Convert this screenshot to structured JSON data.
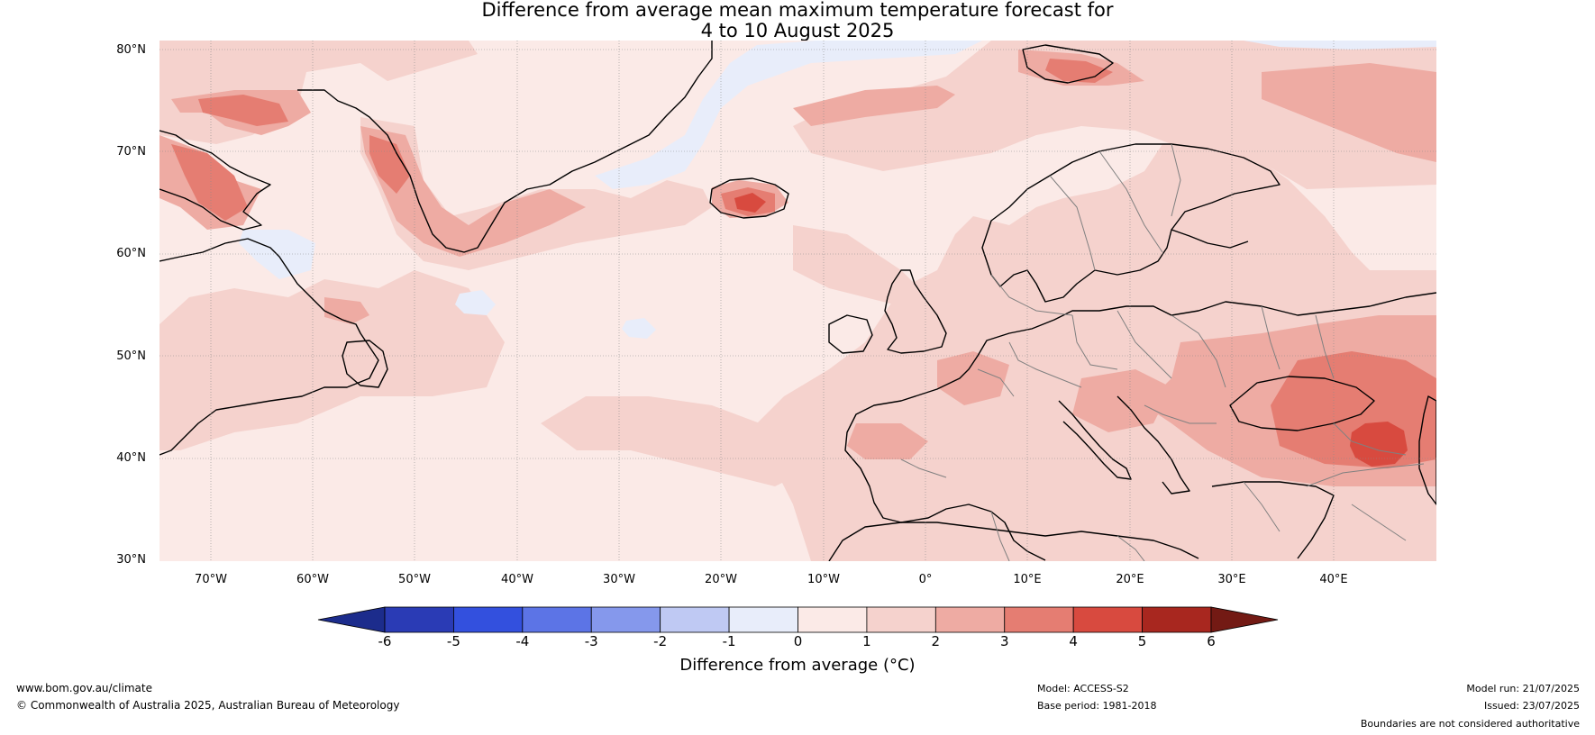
{
  "title": {
    "line1": "Difference from average mean maximum temperature forecast for",
    "line2": "4 to 10 August 2025"
  },
  "map": {
    "region": "North Atlantic and Europe",
    "lon_range": [
      -75,
      50
    ],
    "lat_range": [
      30,
      81
    ],
    "gridlines": true,
    "lat_ticks": [
      "80°N",
      "70°N",
      "60°N",
      "50°N",
      "40°N",
      "30°N"
    ],
    "lon_ticks": [
      "70°W",
      "60°W",
      "50°W",
      "40°W",
      "30°W",
      "20°W",
      "10°W",
      "0°",
      "10°E",
      "20°E",
      "30°E",
      "40°E"
    ],
    "background_class": "0 to 1"
  },
  "colorbar": {
    "label": "Difference from average (°C)",
    "ticks": [
      "-6",
      "-5",
      "-4",
      "-3",
      "-2",
      "-1",
      "0",
      "1",
      "2",
      "3",
      "4",
      "5",
      "6"
    ],
    "colors": [
      "#1c2c8c",
      "#2a3bb5",
      "#3350de",
      "#5c74e6",
      "#8598ec",
      "#bfc9f3",
      "#e8edfa",
      "#fbeae7",
      "#f5d2cd",
      "#eeaba3",
      "#e57d72",
      "#d84a3f",
      "#a8271f",
      "#731a14"
    ],
    "extend": "both"
  },
  "footer": {
    "website": "www.bom.gov.au/climate",
    "copyright": "© Commonwealth of Australia 2025, Australian Bureau of Meteorology",
    "model": "Model: ACCESS-S2",
    "base_period": "Base period: 1981-2018",
    "model_run": "Model run: 21/07/2025",
    "issued": "Issued: 23/07/2025",
    "disclaimer": "Boundaries are not considered authoritative"
  }
}
